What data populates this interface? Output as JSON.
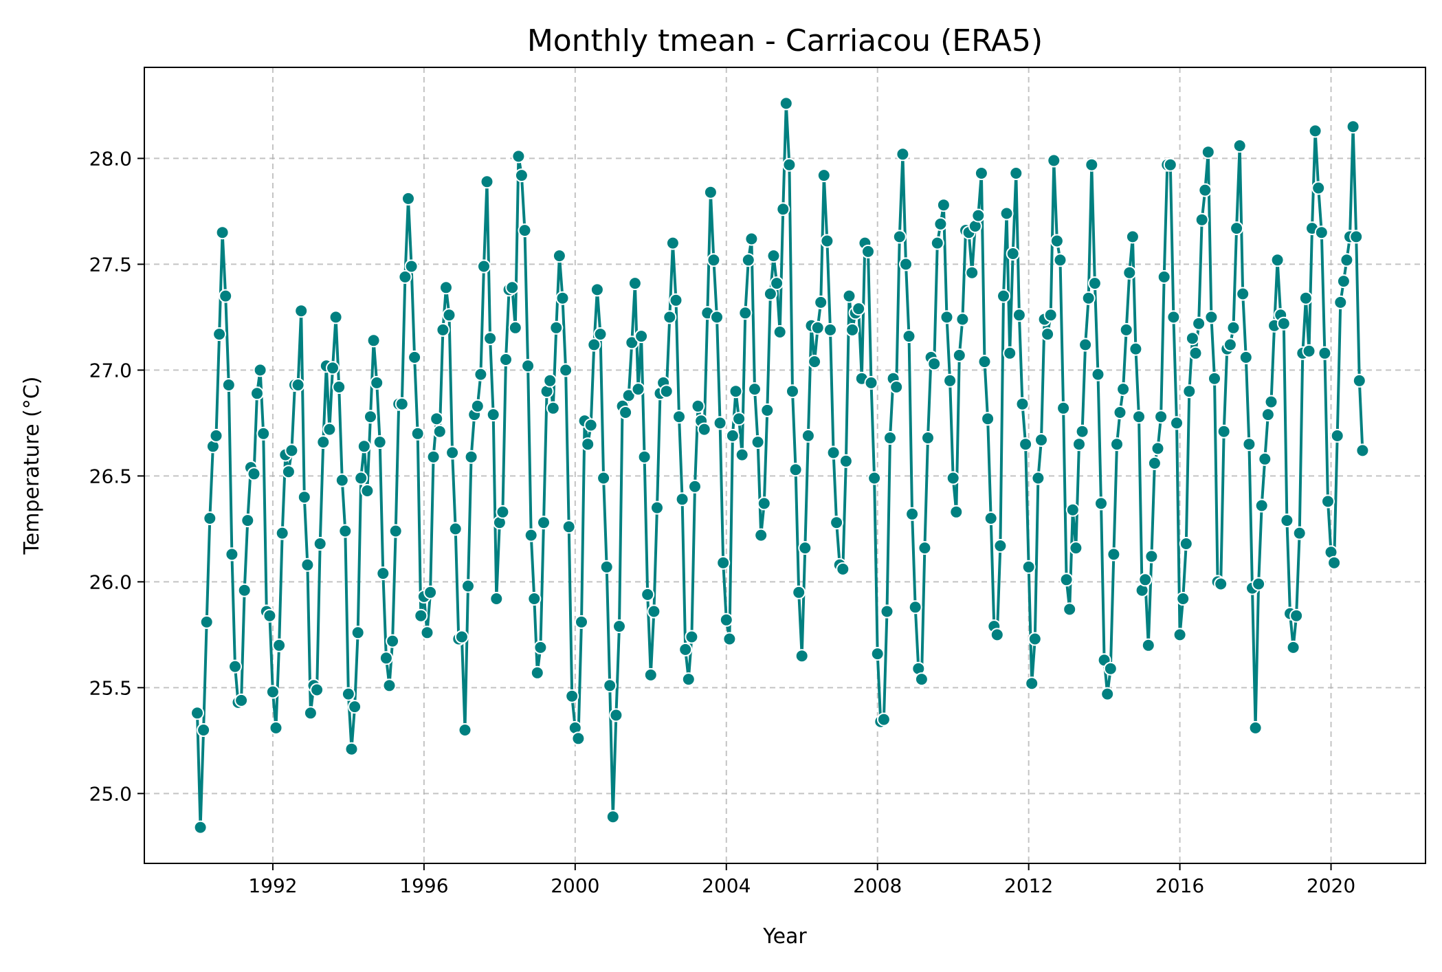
{
  "chart_data": {
    "type": "line",
    "title": "Monthly tmean - Carriacou (ERA5)",
    "xlabel": "Year",
    "ylabel": "Temperature (°C)",
    "xlim": [
      1988.6,
      2022.5
    ],
    "ylim": [
      24.67,
      28.43
    ],
    "grid": true,
    "legend": "none",
    "xticks": [
      1992,
      1996,
      2000,
      2004,
      2008,
      2012,
      2016,
      2020
    ],
    "xtick_labels": [
      "1992",
      "1996",
      "2000",
      "2004",
      "2008",
      "2012",
      "2016",
      "2020"
    ],
    "yticks": [
      25.0,
      25.5,
      26.0,
      26.5,
      27.0,
      27.5,
      28.0
    ],
    "ytick_labels": [
      "25.0",
      "25.5",
      "26.0",
      "26.5",
      "27.0",
      "27.5",
      "28.0"
    ],
    "colors": {
      "line": "#008080",
      "marker_edge": "#ffffff"
    },
    "x_start": "1990-01",
    "series": [
      {
        "values": [
          25.38,
          24.84,
          25.3,
          25.81,
          26.3,
          26.64,
          26.69,
          27.17,
          27.65,
          27.35,
          26.93,
          26.13,
          25.6,
          25.43,
          25.44,
          25.96,
          26.29,
          26.54,
          26.51,
          26.89,
          27.0,
          26.7,
          25.86,
          25.84,
          25.48,
          25.31,
          25.7,
          26.23,
          26.6,
          26.52,
          26.62,
          26.93,
          26.93,
          27.28,
          26.4,
          26.08,
          25.38,
          25.51,
          25.49,
          26.18,
          26.66,
          27.02,
          26.72,
          27.01,
          27.25,
          26.92,
          26.48,
          26.24,
          25.47,
          25.21,
          25.41,
          25.76,
          26.49,
          26.64,
          26.43,
          26.78,
          27.14,
          26.94,
          26.66,
          26.04,
          25.64,
          25.51,
          25.72,
          26.24,
          26.84,
          26.84,
          27.44,
          27.81,
          27.49,
          27.06,
          26.7,
          25.84,
          25.93,
          25.76,
          25.95,
          26.59,
          26.77,
          26.71,
          27.19,
          27.39,
          27.26,
          26.61,
          26.25,
          25.73,
          25.74,
          25.3,
          25.98,
          26.59,
          26.79,
          26.83,
          26.98,
          27.49,
          27.89,
          27.15,
          26.79,
          25.92,
          26.28,
          26.33,
          27.05,
          27.38,
          27.39,
          27.2,
          28.01,
          27.92,
          27.66,
          27.02,
          26.22,
          25.92,
          25.57,
          25.69,
          26.28,
          26.9,
          26.95,
          26.82,
          27.2,
          27.54,
          27.34,
          27.0,
          26.26,
          25.46,
          25.31,
          25.26,
          25.81,
          26.76,
          26.65,
          26.74,
          27.12,
          27.38,
          27.17,
          26.49,
          26.07,
          25.51,
          24.89,
          25.37,
          25.79,
          26.83,
          26.8,
          26.88,
          27.13,
          27.41,
          26.91,
          27.16,
          26.59,
          25.94,
          25.56,
          25.86,
          26.35,
          26.89,
          26.94,
          26.9,
          27.25,
          27.6,
          27.33,
          26.78,
          26.39,
          25.68,
          25.54,
          25.74,
          26.45,
          26.83,
          26.76,
          26.72,
          27.27,
          27.84,
          27.52,
          27.25,
          26.75,
          26.09,
          25.82,
          25.73,
          26.69,
          26.9,
          26.77,
          26.6,
          27.27,
          27.52,
          27.62,
          26.91,
          26.66,
          26.22,
          26.37,
          26.81,
          27.36,
          27.54,
          27.41,
          27.18,
          27.76,
          28.26,
          27.97,
          26.9,
          26.53,
          25.95,
          25.65,
          26.16,
          26.69,
          27.21,
          27.04,
          27.2,
          27.32,
          27.92,
          27.61,
          27.19,
          26.61,
          26.28,
          26.08,
          26.06,
          26.57,
          27.35,
          27.19,
          27.27,
          27.29,
          26.96,
          27.6,
          27.56,
          26.94,
          26.49,
          25.66,
          25.34,
          25.35,
          25.86,
          26.68,
          26.96,
          26.92,
          27.63,
          28.02,
          27.5,
          27.16,
          26.32,
          25.88,
          25.59,
          25.54,
          26.16,
          26.68,
          27.06,
          27.03,
          27.6,
          27.69,
          27.78,
          27.25,
          26.95,
          26.49,
          26.33,
          27.07,
          27.24,
          27.66,
          27.65,
          27.46,
          27.68,
          27.73,
          27.93,
          27.04,
          26.77,
          26.3,
          25.79,
          25.75,
          26.17,
          27.35,
          27.74,
          27.08,
          27.55,
          27.93,
          27.26,
          26.84,
          26.65,
          26.07,
          25.52,
          25.73,
          26.49,
          26.67,
          27.24,
          27.17,
          27.26,
          27.99,
          27.61,
          27.52,
          26.82,
          26.01,
          25.87,
          26.34,
          26.16,
          26.65,
          26.71,
          27.12,
          27.34,
          27.97,
          27.41,
          26.98,
          26.37,
          25.63,
          25.47,
          25.59,
          26.13,
          26.65,
          26.8,
          26.91,
          27.19,
          27.46,
          27.63,
          27.1,
          26.78,
          25.96,
          26.01,
          25.7,
          26.12,
          26.56,
          26.63,
          26.78,
          27.44,
          27.97,
          27.97,
          27.25,
          26.75,
          25.75,
          25.92,
          26.18,
          26.9,
          27.15,
          27.08,
          27.22,
          27.71,
          27.85,
          28.03,
          27.25,
          26.96,
          26.0,
          25.99,
          26.71,
          27.1,
          27.12,
          27.2,
          27.67,
          28.06,
          27.36,
          27.06,
          26.65,
          25.97,
          25.31,
          25.99,
          26.36,
          26.58,
          26.79,
          26.85,
          27.21,
          27.52,
          27.26,
          27.22,
          26.29,
          25.85,
          25.69,
          25.84,
          26.23,
          27.08,
          27.34,
          27.09,
          27.67,
          28.13,
          27.86,
          27.65,
          27.08,
          26.38,
          26.14,
          26.09,
          26.69,
          27.32,
          27.42,
          27.52,
          27.63,
          28.15,
          27.63,
          26.95,
          26.62
        ]
      }
    ]
  }
}
